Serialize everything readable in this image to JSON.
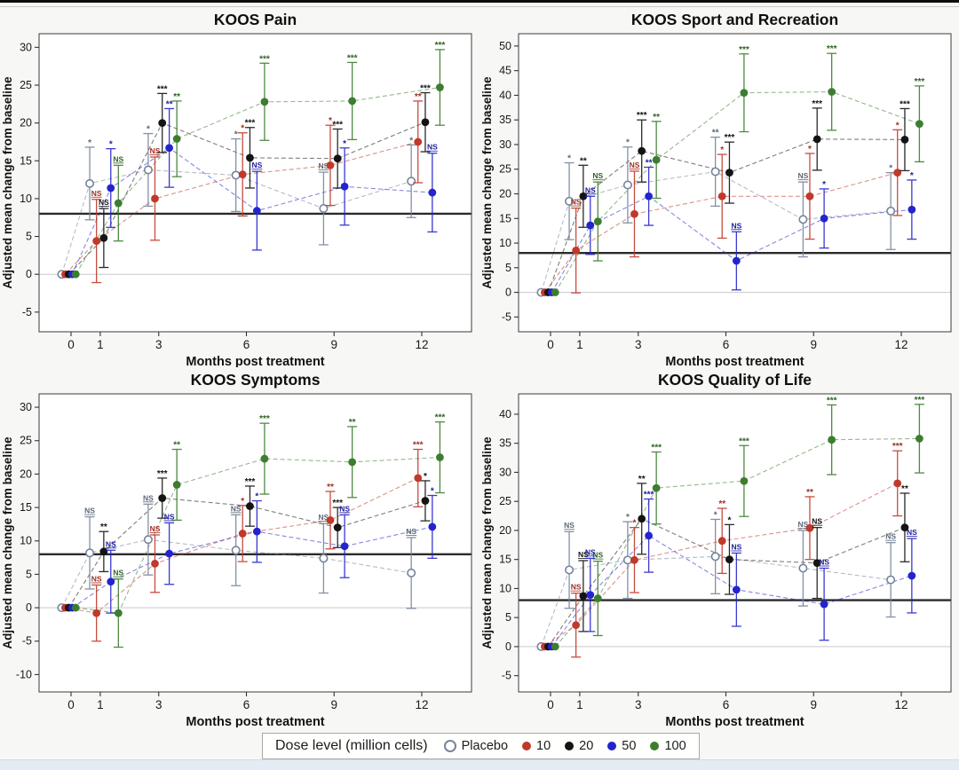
{
  "page": {
    "background": "#f7f7f5",
    "panel_background": "#ffffff",
    "figure_top_border_color": "#0e0e0e",
    "bottom_strip_color": "#e4ebf3",
    "reference_line_value": 8,
    "zero_line_value": 0
  },
  "legend": {
    "title": "Dose level (million cells)",
    "items": [
      {
        "label": "Placebo",
        "color": "#76849b",
        "fill": "open"
      },
      {
        "label": "10",
        "color": "#c0392b",
        "fill": "solid"
      },
      {
        "label": "20",
        "color": "#141414",
        "fill": "solid"
      },
      {
        "label": "50",
        "color": "#2424cc",
        "fill": "solid"
      },
      {
        "label": "100",
        "color": "#3d7d2f",
        "fill": "solid"
      }
    ]
  },
  "chart_data": [
    {
      "type": "line",
      "title": "KOOS Pain",
      "xlabel": "Months post treatment",
      "ylabel": "Adjusted mean change from baseline",
      "x": [
        0,
        1,
        3,
        6,
        9,
        12
      ],
      "xticks": [
        0,
        1,
        3,
        6,
        9,
        12
      ],
      "yticks": [
        -5,
        0,
        5,
        10,
        15,
        20,
        25,
        30
      ],
      "ylim": [
        -7.6,
        31.8
      ],
      "reference_line": 8,
      "series": [
        {
          "name": "Placebo",
          "values": [
            0,
            12.0,
            13.8,
            13.1,
            8.7,
            12.3
          ],
          "err": [
            null,
            4.8,
            4.8,
            4.8,
            4.8,
            4.8
          ],
          "sig": [
            null,
            "*",
            "*",
            "*",
            "NS",
            "*"
          ]
        },
        {
          "name": "10",
          "values": [
            0,
            4.4,
            10.0,
            13.2,
            14.4,
            17.5
          ],
          "err": [
            null,
            5.5,
            5.5,
            5.5,
            5.3,
            5.4
          ],
          "sig": [
            null,
            "NS",
            "NS",
            "*",
            "*",
            "**"
          ]
        },
        {
          "name": "20",
          "values": [
            0,
            4.8,
            20.0,
            15.4,
            15.3,
            20.1
          ],
          "err": [
            null,
            3.9,
            3.9,
            4.0,
            3.9,
            3.9
          ],
          "sig": [
            null,
            "NS",
            "***",
            "***",
            "***",
            "***"
          ]
        },
        {
          "name": "50",
          "values": [
            0,
            11.4,
            16.7,
            8.4,
            11.6,
            10.8
          ],
          "err": [
            null,
            5.2,
            5.2,
            5.2,
            5.1,
            5.2
          ],
          "sig": [
            null,
            "*",
            "**",
            "NS",
            "*",
            "NS"
          ]
        },
        {
          "name": "100",
          "values": [
            0,
            9.4,
            17.9,
            22.8,
            22.9,
            24.7
          ],
          "err": [
            null,
            5.0,
            5.0,
            5.1,
            5.1,
            5.0
          ],
          "sig": [
            null,
            "NS",
            "**",
            "***",
            "***",
            "***"
          ]
        }
      ]
    },
    {
      "type": "line",
      "title": "KOOS Sport and Recreation",
      "xlabel": "Months post treatment",
      "ylabel": "Adjusted mean change from baseline",
      "x": [
        0,
        1,
        3,
        6,
        9,
        12
      ],
      "xticks": [
        0,
        1,
        3,
        6,
        9,
        12
      ],
      "yticks": [
        -5,
        0,
        5,
        10,
        15,
        20,
        25,
        30,
        35,
        40,
        45,
        50
      ],
      "ylim": [
        -8,
        52.5
      ],
      "reference_line": 8,
      "series": [
        {
          "name": "Placebo",
          "values": [
            0,
            18.5,
            21.8,
            24.5,
            14.8,
            16.5
          ],
          "err": [
            null,
            7.8,
            7.7,
            7.0,
            7.6,
            7.8
          ],
          "sig": [
            null,
            "*",
            "*",
            "**",
            "NS",
            "*"
          ]
        },
        {
          "name": "10",
          "values": [
            0,
            8.5,
            15.9,
            19.5,
            19.5,
            24.3
          ],
          "err": [
            null,
            8.6,
            8.7,
            8.5,
            8.7,
            8.7
          ],
          "sig": [
            null,
            "NS",
            "NS",
            "*",
            "*",
            "*"
          ]
        },
        {
          "name": "20",
          "values": [
            0,
            19.5,
            28.7,
            24.3,
            31.1,
            31.0
          ],
          "err": [
            null,
            6.3,
            6.3,
            6.2,
            6.3,
            6.3
          ],
          "sig": [
            null,
            "**",
            "***",
            "***",
            "***",
            "***"
          ]
        },
        {
          "name": "50",
          "values": [
            0,
            13.6,
            19.5,
            6.4,
            15.0,
            16.8
          ],
          "err": [
            null,
            5.9,
            5.9,
            5.9,
            6.0,
            6.0
          ],
          "sig": [
            null,
            "NS",
            "**",
            "NS",
            "*",
            "*"
          ]
        },
        {
          "name": "100",
          "values": [
            0,
            14.4,
            26.9,
            40.5,
            40.7,
            34.2
          ],
          "err": [
            null,
            8.0,
            7.8,
            7.9,
            7.8,
            7.7
          ],
          "sig": [
            null,
            "NS",
            "**",
            "***",
            "***",
            "***"
          ]
        }
      ]
    },
    {
      "type": "line",
      "title": "KOOS Symptoms",
      "xlabel": "Months post treatment",
      "ylabel": "Adjusted mean change from baseline",
      "x": [
        0,
        1,
        3,
        6,
        9,
        12
      ],
      "xticks": [
        0,
        1,
        3,
        6,
        9,
        12
      ],
      "yticks": [
        -10,
        -5,
        0,
        5,
        10,
        15,
        20,
        25,
        30
      ],
      "ylim": [
        -12.6,
        32
      ],
      "reference_line": 8,
      "series": [
        {
          "name": "Placebo",
          "values": [
            0,
            8.2,
            10.2,
            8.6,
            7.4,
            5.2
          ],
          "err": [
            null,
            5.4,
            5.3,
            5.3,
            5.2,
            5.3
          ],
          "sig": [
            null,
            "NS",
            "NS",
            "NS",
            "NS",
            "NS"
          ]
        },
        {
          "name": "10",
          "values": [
            0,
            -0.8,
            6.6,
            11.1,
            13.1,
            19.4
          ],
          "err": [
            null,
            4.2,
            4.3,
            4.2,
            4.3,
            4.3
          ],
          "sig": [
            null,
            "NS",
            "NS",
            "*",
            "**",
            "***"
          ]
        },
        {
          "name": "20",
          "values": [
            0,
            8.4,
            16.4,
            15.2,
            12.0,
            16.0
          ],
          "err": [
            null,
            3.0,
            3.0,
            3.0,
            3.0,
            3.0
          ],
          "sig": [
            null,
            "**",
            "***",
            "***",
            "***",
            "*"
          ]
        },
        {
          "name": "50",
          "values": [
            0,
            3.9,
            8.1,
            11.4,
            9.2,
            12.1
          ],
          "err": [
            null,
            4.7,
            4.6,
            4.6,
            4.7,
            4.7
          ],
          "sig": [
            null,
            "NS",
            "NS",
            "*",
            "NS",
            "*"
          ]
        },
        {
          "name": "100",
          "values": [
            0,
            -0.8,
            18.4,
            22.3,
            21.8,
            22.5
          ],
          "err": [
            null,
            5.1,
            5.3,
            5.3,
            5.3,
            5.3
          ],
          "sig": [
            null,
            "NS",
            "**",
            "***",
            "**",
            "***"
          ]
        }
      ]
    },
    {
      "type": "line",
      "title": "KOOS Quality of Life",
      "xlabel": "Months post treatment",
      "ylabel": "Adjusted mean change from baseline",
      "x": [
        0,
        1,
        3,
        6,
        9,
        12
      ],
      "xticks": [
        0,
        1,
        3,
        6,
        9,
        12
      ],
      "yticks": [
        -5,
        0,
        5,
        10,
        15,
        20,
        25,
        30,
        35,
        40
      ],
      "ylim": [
        -7.8,
        43.5
      ],
      "reference_line": 8,
      "series": [
        {
          "name": "Placebo",
          "values": [
            0,
            13.2,
            14.9,
            15.5,
            13.5,
            11.5
          ],
          "err": [
            null,
            6.6,
            6.6,
            6.4,
            6.5,
            6.4
          ],
          "sig": [
            null,
            "NS",
            "*",
            "*",
            "NS",
            "NS"
          ]
        },
        {
          "name": "10",
          "values": [
            0,
            3.7,
            14.9,
            18.2,
            20.4,
            28.1
          ],
          "err": [
            null,
            5.5,
            5.6,
            5.6,
            5.4,
            5.6
          ],
          "sig": [
            null,
            "NS",
            "*",
            "**",
            "**",
            "***"
          ]
        },
        {
          "name": "20",
          "values": [
            0,
            8.7,
            22.0,
            15.0,
            14.4,
            20.5
          ],
          "err": [
            null,
            6.1,
            6.1,
            6.0,
            6.1,
            5.9
          ],
          "sig": [
            null,
            "NS",
            "**",
            "*",
            "NS",
            "**"
          ]
        },
        {
          "name": "50",
          "values": [
            0,
            8.9,
            19.1,
            9.8,
            7.3,
            12.2
          ],
          "err": [
            null,
            6.3,
            6.3,
            6.3,
            6.2,
            6.4
          ],
          "sig": [
            null,
            "NS",
            "***",
            "NS",
            "NS",
            "NS"
          ]
        },
        {
          "name": "100",
          "values": [
            0,
            8.3,
            27.3,
            28.5,
            35.6,
            35.8
          ],
          "err": [
            null,
            6.4,
            6.2,
            6.1,
            6.0,
            5.9
          ],
          "sig": [
            null,
            "NS",
            "***",
            "***",
            "***",
            "***"
          ]
        }
      ]
    }
  ]
}
